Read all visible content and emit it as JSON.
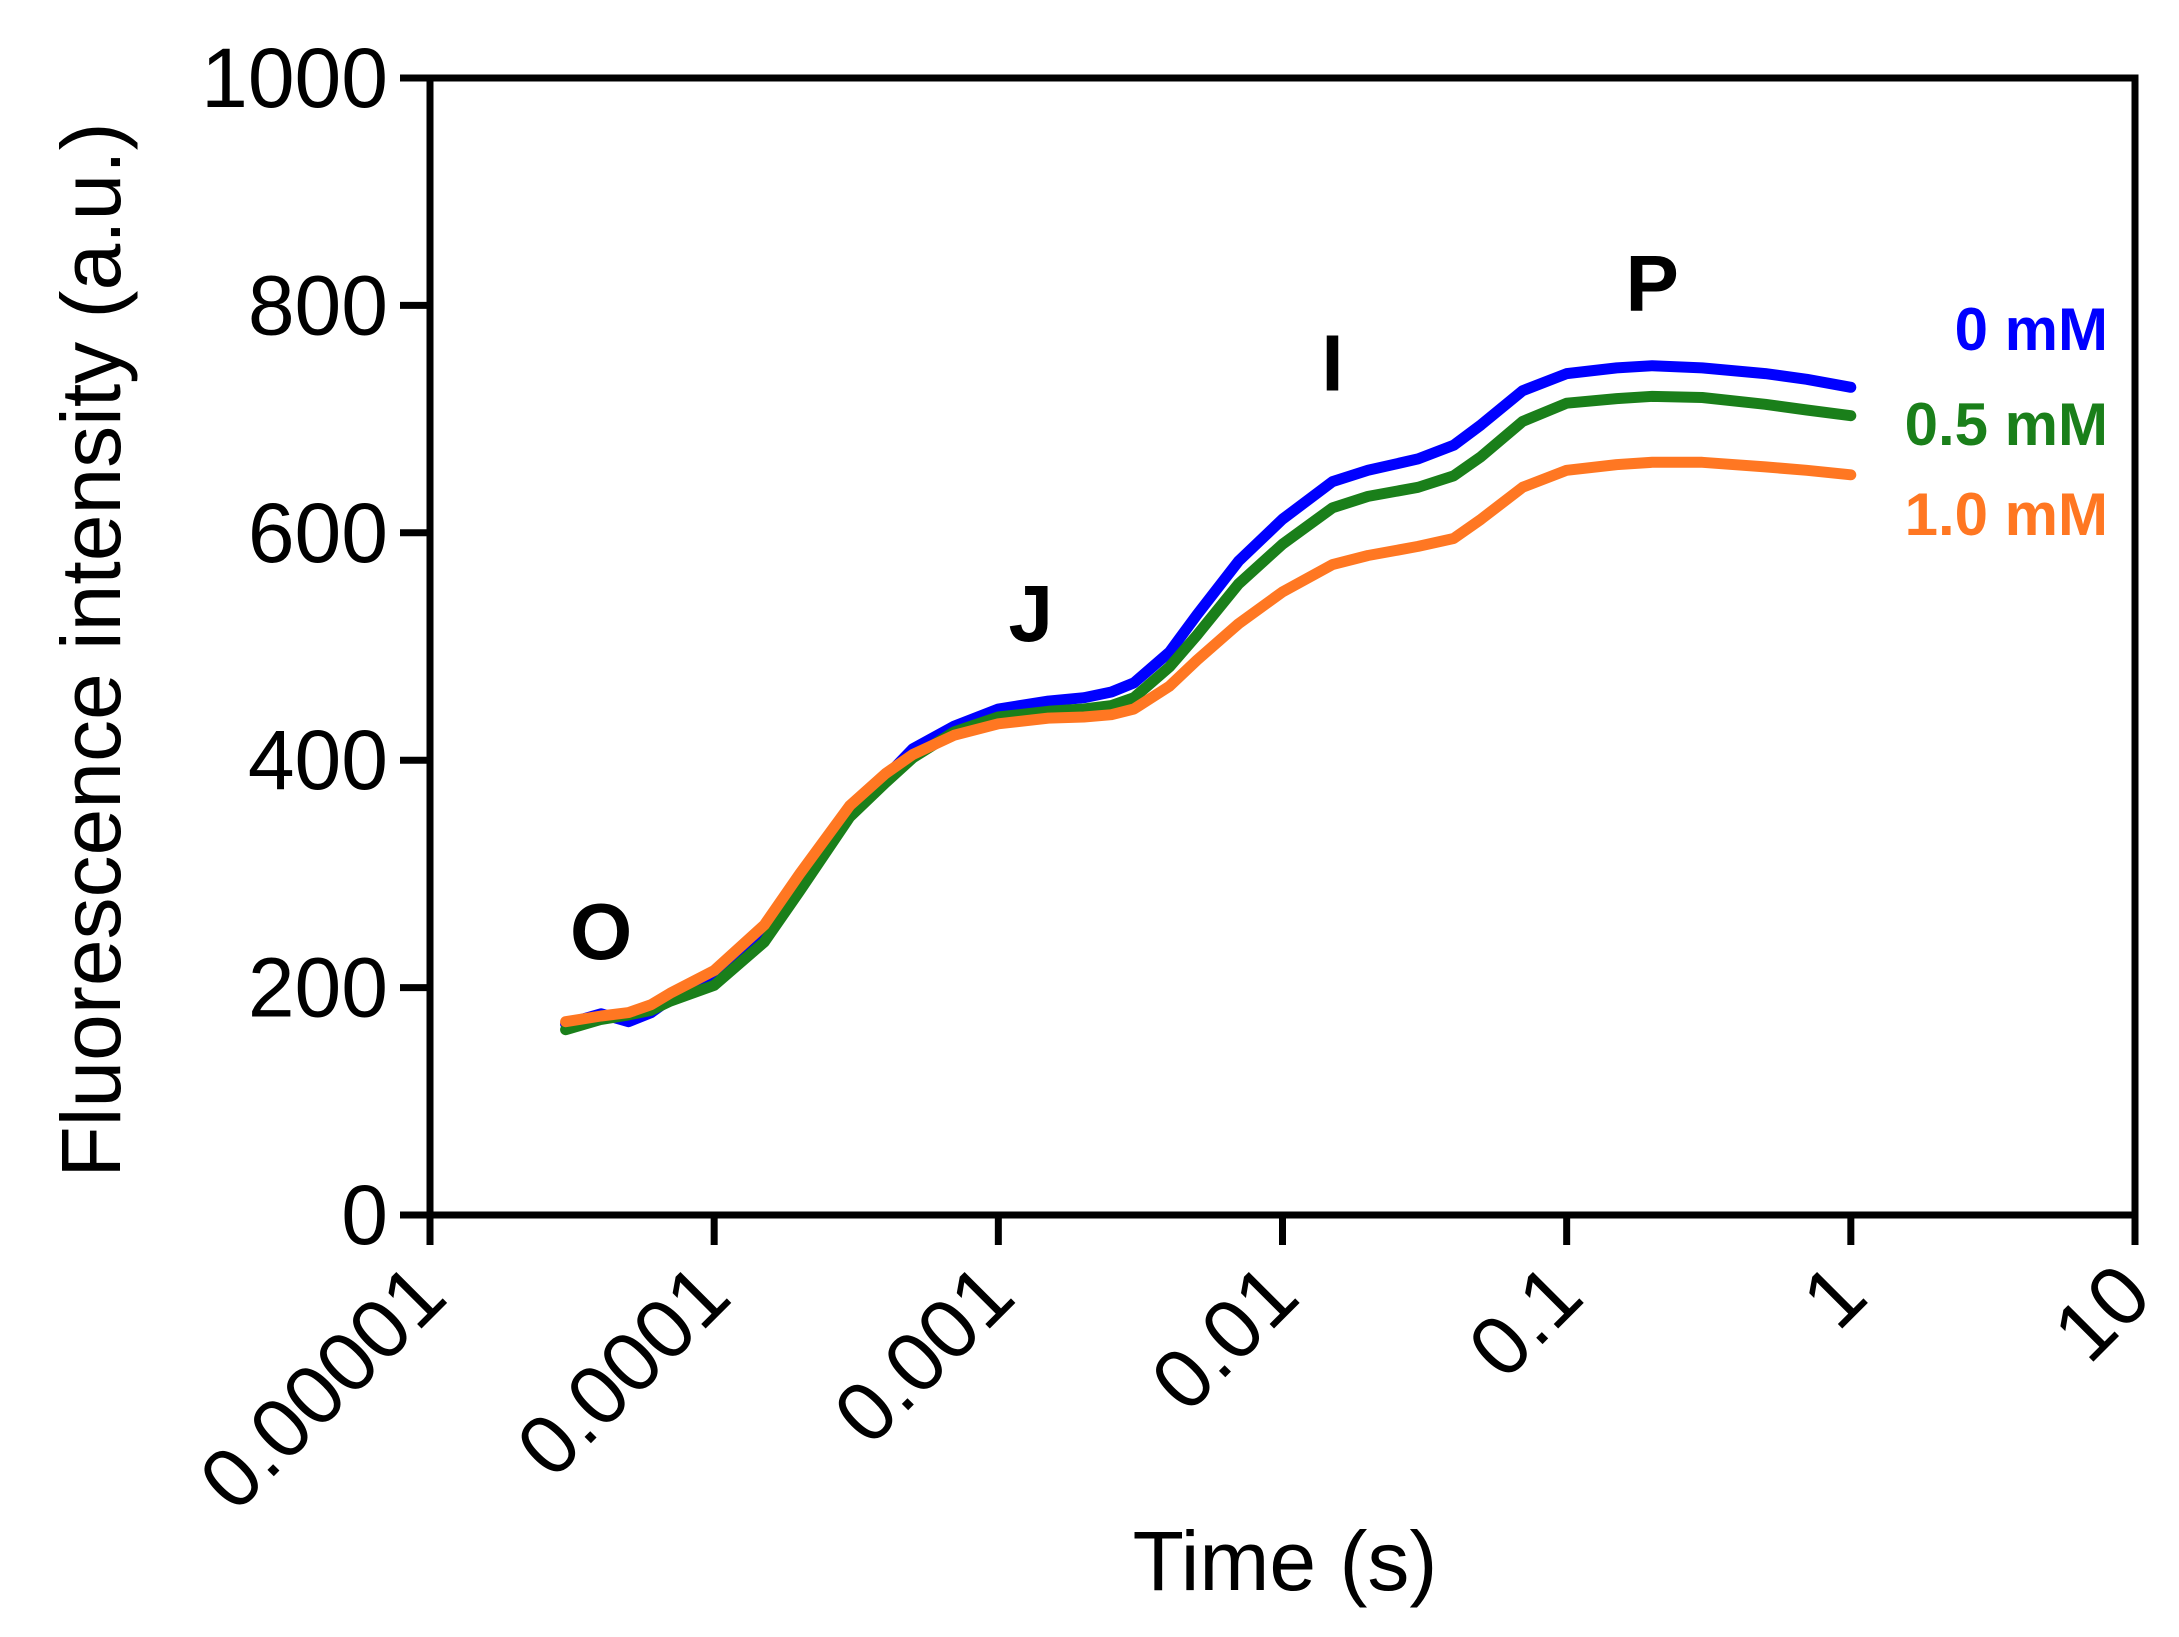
{
  "chart_data": {
    "type": "line",
    "xlabel": "Time (s)",
    "ylabel": "Fluorescence intensity (a.u.)",
    "x_scale": "log",
    "xlim": [
      1e-05,
      10
    ],
    "ylim": [
      0,
      1000
    ],
    "x_ticks": [
      1e-05,
      0.0001,
      0.001,
      0.01,
      0.1,
      1,
      10
    ],
    "x_tick_labels": [
      "0.00001",
      "0.0001",
      "0.001",
      "0.01",
      "0.1",
      "1",
      "10"
    ],
    "y_ticks": [
      0,
      200,
      400,
      600,
      800,
      1000
    ],
    "y_tick_labels": [
      "0",
      "200",
      "400",
      "600",
      "800",
      "1000"
    ],
    "grid": false,
    "legend_placement": "right (inline labels at line ends)",
    "annotations": [
      {
        "text": "O",
        "x": 4e-05,
        "y": 225
      },
      {
        "text": "J",
        "x": 0.0013,
        "y": 505
      },
      {
        "text": "I",
        "x": 0.015,
        "y": 725
      },
      {
        "text": "P",
        "x": 0.2,
        "y": 795
      }
    ],
    "series": [
      {
        "name": "0 mM",
        "color": "#0000ff",
        "x": [
          3e-05,
          4e-05,
          5e-05,
          6e-05,
          7e-05,
          0.0001,
          0.00015,
          0.0002,
          0.0003,
          0.0004,
          0.0005,
          0.0007,
          0.001,
          0.0015,
          0.002,
          0.0025,
          0.003,
          0.004,
          0.005,
          0.007,
          0.01,
          0.015,
          0.02,
          0.03,
          0.04,
          0.05,
          0.07,
          0.1,
          0.15,
          0.2,
          0.3,
          0.5,
          0.7,
          1.0
        ],
        "y": [
          168,
          177,
          170,
          178,
          190,
          205,
          245,
          290,
          355,
          385,
          410,
          430,
          445,
          452,
          455,
          460,
          468,
          495,
          528,
          575,
          612,
          645,
          655,
          665,
          677,
          695,
          725,
          740,
          745,
          747,
          745,
          740,
          735,
          728
        ]
      },
      {
        "name": "0.5 mM",
        "color": "#1a7f1a",
        "x": [
          3e-05,
          4e-05,
          5e-05,
          6e-05,
          7e-05,
          0.0001,
          0.00015,
          0.0002,
          0.0003,
          0.0004,
          0.0005,
          0.0007,
          0.001,
          0.0015,
          0.002,
          0.0025,
          0.003,
          0.004,
          0.005,
          0.007,
          0.01,
          0.015,
          0.02,
          0.03,
          0.04,
          0.05,
          0.07,
          0.1,
          0.15,
          0.2,
          0.3,
          0.5,
          0.7,
          1.0
        ],
        "y": [
          163,
          172,
          176,
          180,
          188,
          202,
          240,
          285,
          350,
          380,
          402,
          425,
          438,
          443,
          445,
          448,
          455,
          482,
          510,
          555,
          590,
          622,
          632,
          640,
          650,
          667,
          698,
          714,
          718,
          720,
          719,
          713,
          708,
          703
        ]
      },
      {
        "name": "1.0 mM",
        "color": "#ff7722",
        "x": [
          3e-05,
          4e-05,
          5e-05,
          6e-05,
          7e-05,
          0.0001,
          0.00015,
          0.0002,
          0.0003,
          0.0004,
          0.0005,
          0.0007,
          0.001,
          0.0015,
          0.002,
          0.0025,
          0.003,
          0.004,
          0.005,
          0.007,
          0.01,
          0.015,
          0.02,
          0.03,
          0.04,
          0.05,
          0.07,
          0.1,
          0.15,
          0.2,
          0.3,
          0.5,
          0.7,
          1.0
        ],
        "y": [
          170,
          175,
          178,
          185,
          195,
          215,
          255,
          300,
          360,
          388,
          405,
          422,
          432,
          437,
          438,
          440,
          445,
          465,
          488,
          520,
          548,
          572,
          580,
          588,
          595,
          612,
          640,
          655,
          660,
          662,
          662,
          658,
          655,
          651
        ]
      }
    ]
  }
}
